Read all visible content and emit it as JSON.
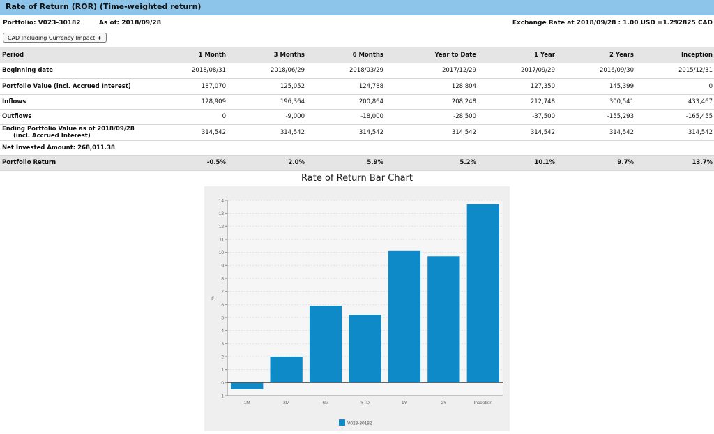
{
  "header": {
    "title": "Rate of Return (ROR) (Time-weighted return)"
  },
  "info": {
    "portfolio": "Portfolio: V023-30182",
    "as_of": "As of: 2018/09/28",
    "exchange_rate": "Exchange Rate at 2018/09/28 : 1.00 USD =1.292825 CAD"
  },
  "currency_select": {
    "selected": "CAD Including Currency Impact",
    "icon": "updown-arrow-icon"
  },
  "table": {
    "columns": [
      "Period",
      "1 Month",
      "3 Months",
      "6 Months",
      "Year to Date",
      "1 Year",
      "2 Years",
      "Inception"
    ],
    "beginning_date": {
      "label": "Beginning date",
      "values": [
        "2018/08/31",
        "2018/06/29",
        "2018/03/29",
        "2017/12/29",
        "2017/09/29",
        "2016/09/30",
        "2015/12/31"
      ]
    },
    "portfolio_value": {
      "label": "Portfolio Value  (incl. Accrued Interest)",
      "values": [
        "187,070",
        "125,052",
        "124,788",
        "128,804",
        "127,350",
        "145,399",
        "0"
      ]
    },
    "inflows": {
      "label": "Inflows",
      "values": [
        "128,909",
        "196,364",
        "200,864",
        "208,248",
        "212,748",
        "300,541",
        "433,467"
      ]
    },
    "outflows": {
      "label": "Outflows",
      "values": [
        "0",
        "-9,000",
        "-18,000",
        "-28,500",
        "-37,500",
        "-155,293",
        "-165,455"
      ]
    },
    "ending_value": {
      "label_line1": "Ending Portfolio Value as of  2018/09/28",
      "label_line2": "(incl. Accrued Interest)",
      "values": [
        "314,542",
        "314,542",
        "314,542",
        "314,542",
        "314,542",
        "314,542",
        "314,542"
      ]
    },
    "net_invested": "Net Invested Amount: 268,011.38",
    "portfolio_return": {
      "label": "Portfolio Return",
      "values": [
        "-0.5%",
        "2.0%",
        "5.9%",
        "5.2%",
        "10.1%",
        "9.7%",
        "13.7%"
      ]
    }
  },
  "chart_title": "Rate of Return Bar Chart",
  "chart_data": {
    "type": "bar",
    "title": "Rate of Return Bar Chart",
    "categories": [
      "1M",
      "3M",
      "6M",
      "YTD",
      "1Y",
      "2Y",
      "Inception"
    ],
    "series": [
      {
        "name": "V023-30182",
        "values": [
          -0.5,
          2.0,
          5.9,
          5.2,
          10.1,
          9.7,
          13.7
        ]
      }
    ],
    "xlabel": "",
    "ylabel": "%",
    "ylim": [
      -1,
      14
    ],
    "yticks": [
      "-1",
      "0",
      "1",
      "2",
      "3",
      "4",
      "5",
      "6",
      "7",
      "8",
      "9",
      "10",
      "11",
      "12",
      "13",
      "14"
    ],
    "grid": true,
    "legend": "bottom-center",
    "bar_color": "#0e8ac8"
  },
  "colors": {
    "header": "#8cc4ea",
    "band": "#e5e5e5",
    "bar": "#0e8ac8"
  }
}
